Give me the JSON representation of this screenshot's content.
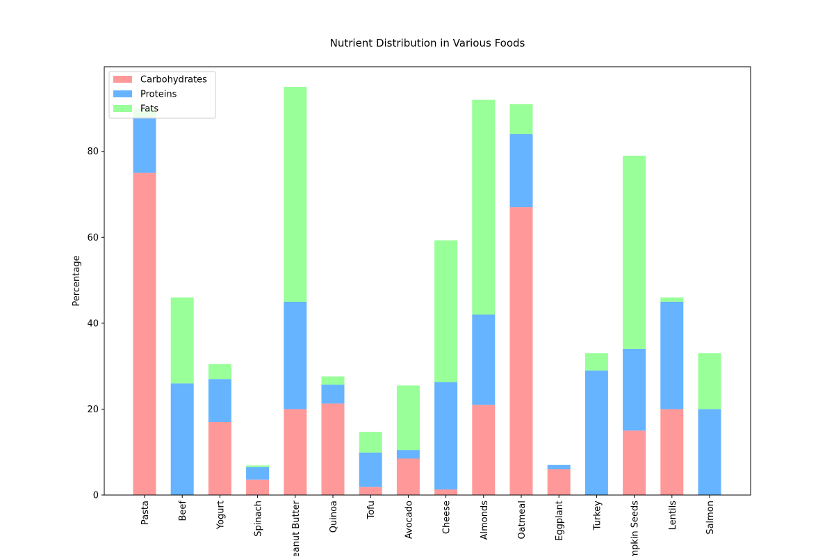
{
  "chart_data": {
    "type": "bar",
    "stacked": true,
    "title": "Nutrient Distribution in Various Foods",
    "xlabel": "",
    "ylabel": "Percentage",
    "ylim": [
      0,
      100
    ],
    "yticks": [
      0,
      20,
      40,
      60,
      80
    ],
    "legend_position": "top-left",
    "grid": false,
    "categories": [
      "Pasta",
      "Beef",
      "Yogurt",
      "Spinach",
      "Peanut Butter",
      "Quinoa",
      "Tofu",
      "Avocado",
      "Cheese",
      "Almonds",
      "Oatmeal",
      "Eggplant",
      "Turkey",
      "Pumpkin Seeds",
      "Lentils",
      "Salmon"
    ],
    "series": [
      {
        "name": "Carbohydrates",
        "color": "#ff9999",
        "values": [
          75,
          0,
          17,
          3.6,
          20,
          21.3,
          1.9,
          8.5,
          1.3,
          21,
          67,
          6,
          0,
          15,
          20,
          0
        ]
      },
      {
        "name": "Proteins",
        "color": "#66b3ff",
        "values": [
          13,
          26,
          10,
          2.9,
          25,
          4.4,
          8,
          2,
          25,
          21,
          17,
          1,
          29,
          19,
          25,
          20
        ]
      },
      {
        "name": "Fats",
        "color": "#99ff99",
        "values": [
          2,
          20,
          3.5,
          0.4,
          50,
          1.9,
          4.8,
          15,
          33,
          50,
          7,
          0,
          4,
          45,
          1,
          13
        ]
      }
    ]
  }
}
